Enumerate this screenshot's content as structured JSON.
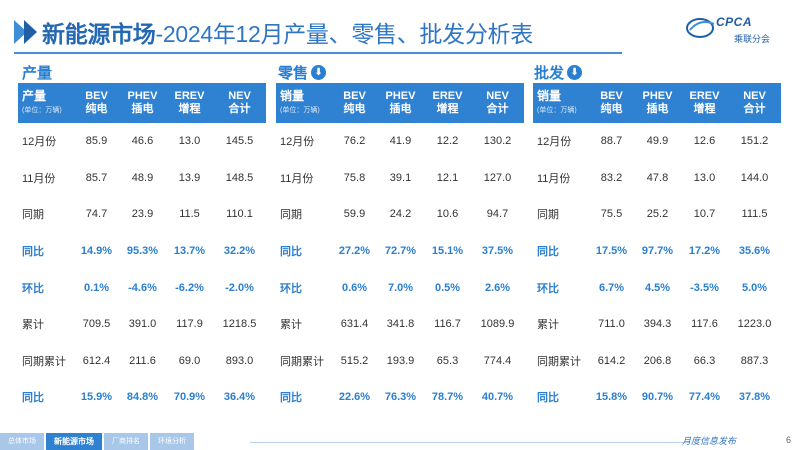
{
  "header": {
    "title_bold": "新能源市场",
    "title_rest": "-2024年12月产量、零售、批发分析表",
    "logo_text": "CPCA",
    "logo_sub": "乘联分会"
  },
  "sections": [
    {
      "label": "产量",
      "has_arrow": false,
      "row_header": "产量",
      "unit": "(单位：万辆)",
      "columns": [
        {
          "code": "BEV",
          "name": "纯电"
        },
        {
          "code": "PHEV",
          "name": "插电"
        },
        {
          "code": "EREV",
          "name": "增程"
        },
        {
          "code": "NEV",
          "name": "合计"
        }
      ],
      "rows": [
        {
          "label": "12月份",
          "values": [
            "85.9",
            "46.6",
            "13.0",
            "145.5"
          ],
          "highlight": false
        },
        {
          "label": "11月份",
          "values": [
            "85.7",
            "48.9",
            "13.9",
            "148.5"
          ],
          "highlight": false
        },
        {
          "label": "同期",
          "values": [
            "74.7",
            "23.9",
            "11.5",
            "110.1"
          ],
          "highlight": false
        },
        {
          "label": "同比",
          "values": [
            "14.9%",
            "95.3%",
            "13.7%",
            "32.2%"
          ],
          "highlight": true
        },
        {
          "label": "环比",
          "values": [
            "0.1%",
            "-4.6%",
            "-6.2%",
            "-2.0%"
          ],
          "highlight": true
        },
        {
          "label": "累计",
          "values": [
            "709.5",
            "391.0",
            "117.9",
            "1218.5"
          ],
          "highlight": false
        },
        {
          "label": "同期累计",
          "values": [
            "612.4",
            "211.6",
            "69.0",
            "893.0"
          ],
          "highlight": false
        },
        {
          "label": "同比",
          "values": [
            "15.9%",
            "84.8%",
            "70.9%",
            "36.4%"
          ],
          "highlight": true
        }
      ]
    },
    {
      "label": "零售",
      "has_arrow": true,
      "row_header": "销量",
      "unit": "(单位：万辆)",
      "columns": [
        {
          "code": "BEV",
          "name": "纯电"
        },
        {
          "code": "PHEV",
          "name": "插电"
        },
        {
          "code": "EREV",
          "name": "增程"
        },
        {
          "code": "NEV",
          "name": "合计"
        }
      ],
      "rows": [
        {
          "label": "12月份",
          "values": [
            "76.2",
            "41.9",
            "12.2",
            "130.2"
          ],
          "highlight": false
        },
        {
          "label": "11月份",
          "values": [
            "75.8",
            "39.1",
            "12.1",
            "127.0"
          ],
          "highlight": false
        },
        {
          "label": "同期",
          "values": [
            "59.9",
            "24.2",
            "10.6",
            "94.7"
          ],
          "highlight": false
        },
        {
          "label": "同比",
          "values": [
            "27.2%",
            "72.7%",
            "15.1%",
            "37.5%"
          ],
          "highlight": true
        },
        {
          "label": "环比",
          "values": [
            "0.6%",
            "7.0%",
            "0.5%",
            "2.6%"
          ],
          "highlight": true
        },
        {
          "label": "累计",
          "values": [
            "631.4",
            "341.8",
            "116.7",
            "1089.9"
          ],
          "highlight": false
        },
        {
          "label": "同期累计",
          "values": [
            "515.2",
            "193.9",
            "65.3",
            "774.4"
          ],
          "highlight": false
        },
        {
          "label": "同比",
          "values": [
            "22.6%",
            "76.3%",
            "78.7%",
            "40.7%"
          ],
          "highlight": true
        }
      ]
    },
    {
      "label": "批发",
      "has_arrow": true,
      "row_header": "销量",
      "unit": "(单位：万辆)",
      "columns": [
        {
          "code": "BEV",
          "name": "纯电"
        },
        {
          "code": "PHEV",
          "name": "插电"
        },
        {
          "code": "EREV",
          "name": "增程"
        },
        {
          "code": "NEV",
          "name": "合计"
        }
      ],
      "rows": [
        {
          "label": "12月份",
          "values": [
            "88.7",
            "49.9",
            "12.6",
            "151.2"
          ],
          "highlight": false
        },
        {
          "label": "11月份",
          "values": [
            "83.2",
            "47.8",
            "13.0",
            "144.0"
          ],
          "highlight": false
        },
        {
          "label": "同期",
          "values": [
            "75.5",
            "25.2",
            "10.7",
            "111.5"
          ],
          "highlight": false
        },
        {
          "label": "同比",
          "values": [
            "17.5%",
            "97.7%",
            "17.2%",
            "35.6%"
          ],
          "highlight": true
        },
        {
          "label": "环比",
          "values": [
            "6.7%",
            "4.5%",
            "-3.5%",
            "5.0%"
          ],
          "highlight": true
        },
        {
          "label": "累计",
          "values": [
            "711.0",
            "394.3",
            "117.6",
            "1223.0"
          ],
          "highlight": false
        },
        {
          "label": "同期累计",
          "values": [
            "614.2",
            "206.8",
            "66.3",
            "887.3"
          ],
          "highlight": false
        },
        {
          "label": "同比",
          "values": [
            "15.8%",
            "90.7%",
            "77.4%",
            "37.8%"
          ],
          "highlight": true
        }
      ]
    }
  ],
  "footer": {
    "tabs": [
      {
        "label": "总体市场",
        "active": false
      },
      {
        "label": "新能源市场",
        "active": true
      },
      {
        "label": "厂商排名",
        "active": false
      },
      {
        "label": "环境分析",
        "active": false
      }
    ],
    "right_text": "月度信息发布",
    "page_number": "6"
  },
  "colors": {
    "accent": "#2f81d2",
    "title": "#2f76c2",
    "highlight_text": "#2a7fd0"
  }
}
